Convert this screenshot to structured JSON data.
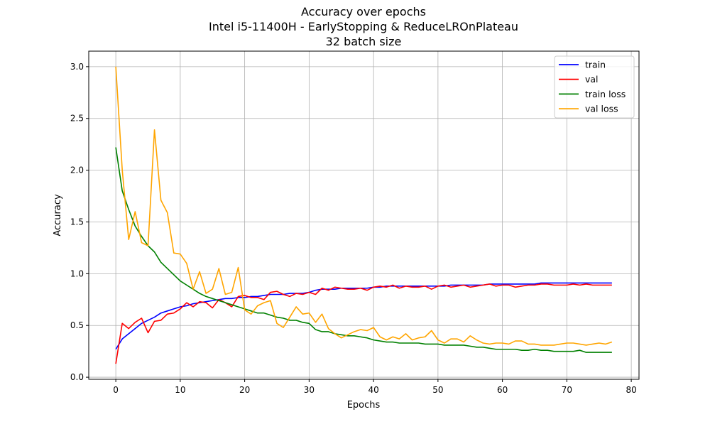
{
  "chart_data": {
    "type": "line",
    "title": [
      "Accuracy over epochs",
      "Intel i5-11400H - EarlyStopping & ReduceLROnPlateau",
      "32 batch size"
    ],
    "xlabel": "Epochs",
    "ylabel": "Accuracy",
    "xlim": [
      -4.2,
      81.2
    ],
    "ylim": [
      -0.02,
      3.15
    ],
    "xticks": [
      0,
      10,
      20,
      30,
      40,
      50,
      60,
      70,
      80
    ],
    "yticks": [
      0.0,
      0.5,
      1.0,
      1.5,
      2.0,
      2.5,
      3.0
    ],
    "xtick_labels": [
      "0",
      "10",
      "20",
      "30",
      "40",
      "50",
      "60",
      "70",
      "80"
    ],
    "ytick_labels": [
      "0.0",
      "0.5",
      "1.0",
      "1.5",
      "2.0",
      "2.5",
      "3.0"
    ],
    "grid": true,
    "legend_position": "top-right",
    "series": [
      {
        "name": "train",
        "color": "#0000ff",
        "values": [
          0.27,
          0.37,
          0.42,
          0.47,
          0.52,
          0.55,
          0.58,
          0.62,
          0.64,
          0.66,
          0.68,
          0.69,
          0.71,
          0.72,
          0.73,
          0.74,
          0.75,
          0.76,
          0.76,
          0.77,
          0.77,
          0.78,
          0.78,
          0.79,
          0.8,
          0.8,
          0.8,
          0.81,
          0.81,
          0.81,
          0.82,
          0.84,
          0.85,
          0.85,
          0.85,
          0.86,
          0.86,
          0.86,
          0.86,
          0.86,
          0.87,
          0.87,
          0.88,
          0.88,
          0.88,
          0.88,
          0.88,
          0.88,
          0.88,
          0.88,
          0.88,
          0.88,
          0.89,
          0.89,
          0.89,
          0.89,
          0.89,
          0.89,
          0.9,
          0.9,
          0.9,
          0.9,
          0.9,
          0.9,
          0.9,
          0.9,
          0.91,
          0.91,
          0.91,
          0.91,
          0.91,
          0.91,
          0.91,
          0.91,
          0.91,
          0.91,
          0.91,
          0.91
        ]
      },
      {
        "name": "val",
        "color": "#ff0000",
        "values": [
          0.13,
          0.52,
          0.47,
          0.53,
          0.57,
          0.43,
          0.54,
          0.55,
          0.61,
          0.62,
          0.66,
          0.72,
          0.68,
          0.73,
          0.72,
          0.67,
          0.75,
          0.72,
          0.68,
          0.78,
          0.79,
          0.77,
          0.77,
          0.75,
          0.82,
          0.83,
          0.8,
          0.78,
          0.81,
          0.8,
          0.82,
          0.8,
          0.86,
          0.84,
          0.87,
          0.86,
          0.85,
          0.85,
          0.86,
          0.84,
          0.87,
          0.88,
          0.87,
          0.89,
          0.86,
          0.88,
          0.87,
          0.87,
          0.88,
          0.85,
          0.88,
          0.89,
          0.87,
          0.88,
          0.89,
          0.87,
          0.88,
          0.89,
          0.9,
          0.88,
          0.89,
          0.89,
          0.87,
          0.88,
          0.89,
          0.89,
          0.9,
          0.9,
          0.89,
          0.89,
          0.89,
          0.9,
          0.89,
          0.9,
          0.89,
          0.89,
          0.89,
          0.89
        ]
      },
      {
        "name": "train loss",
        "color": "#008000",
        "values": [
          2.22,
          1.8,
          1.62,
          1.46,
          1.36,
          1.27,
          1.21,
          1.11,
          1.05,
          0.99,
          0.93,
          0.89,
          0.85,
          0.81,
          0.78,
          0.76,
          0.74,
          0.72,
          0.7,
          0.68,
          0.66,
          0.64,
          0.62,
          0.62,
          0.6,
          0.58,
          0.57,
          0.55,
          0.55,
          0.53,
          0.52,
          0.46,
          0.44,
          0.44,
          0.42,
          0.41,
          0.4,
          0.4,
          0.39,
          0.38,
          0.36,
          0.35,
          0.34,
          0.34,
          0.33,
          0.33,
          0.33,
          0.33,
          0.32,
          0.32,
          0.32,
          0.31,
          0.31,
          0.31,
          0.31,
          0.3,
          0.29,
          0.29,
          0.28,
          0.27,
          0.27,
          0.27,
          0.27,
          0.26,
          0.26,
          0.27,
          0.26,
          0.26,
          0.25,
          0.25,
          0.25,
          0.25,
          0.26,
          0.24,
          0.24,
          0.24,
          0.24,
          0.24
        ]
      },
      {
        "name": "val loss",
        "color": "#ffa500",
        "values": [
          3.0,
          2.0,
          1.33,
          1.6,
          1.3,
          1.27,
          2.39,
          1.71,
          1.59,
          1.2,
          1.19,
          1.1,
          0.85,
          1.02,
          0.81,
          0.85,
          1.05,
          0.8,
          0.82,
          1.06,
          0.65,
          0.61,
          0.69,
          0.72,
          0.74,
          0.52,
          0.48,
          0.58,
          0.68,
          0.61,
          0.62,
          0.53,
          0.61,
          0.47,
          0.42,
          0.38,
          0.41,
          0.44,
          0.46,
          0.45,
          0.48,
          0.39,
          0.36,
          0.39,
          0.37,
          0.42,
          0.36,
          0.38,
          0.39,
          0.45,
          0.36,
          0.33,
          0.37,
          0.37,
          0.34,
          0.4,
          0.36,
          0.33,
          0.32,
          0.33,
          0.33,
          0.32,
          0.35,
          0.35,
          0.32,
          0.32,
          0.31,
          0.31,
          0.31,
          0.32,
          0.33,
          0.33,
          0.32,
          0.31,
          0.32,
          0.33,
          0.32,
          0.34
        ]
      }
    ]
  }
}
